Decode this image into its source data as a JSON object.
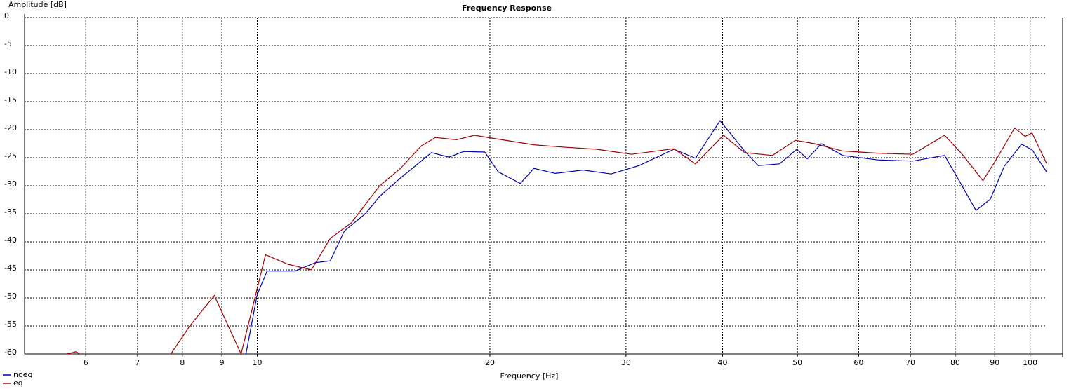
{
  "chart_data": {
    "type": "line",
    "title": "Frequency Response",
    "xlabel": "Frequency [Hz]",
    "ylabel": "Amplitude [dB]",
    "xscale": "log",
    "grid": true,
    "legend": "bottom-left",
    "xlim": [
      5,
      105
    ],
    "ylim": [
      -60,
      0
    ],
    "xticks": [
      6,
      7,
      8,
      9,
      10,
      20,
      30,
      40,
      50,
      60,
      70,
      80,
      90,
      100
    ],
    "yticks": [
      0,
      -5,
      -10,
      -15,
      -20,
      -25,
      -30,
      -35,
      -40,
      -45,
      -50,
      -55,
      -60
    ],
    "series": [
      {
        "name": "noeq",
        "color": "#0000b0",
        "x": [
          9.67,
          10,
          10.3,
          11.2,
          11.9,
          12.43,
          12.96,
          13.8,
          14.4,
          15.3,
          16.8,
          17.7,
          18.5,
          19.7,
          20.5,
          21.9,
          22.8,
          24.3,
          26.4,
          28.7,
          31.2,
          34.6,
          36.9,
          39.7,
          42.7,
          44.5,
          47.4,
          49.9,
          51.5,
          53.7,
          57.2,
          63.5,
          70.5,
          77.5,
          80.8,
          85.1,
          88.8,
          92.6,
          97.5,
          100.6,
          105
        ],
        "values": [
          -60,
          -49.4,
          -45.2,
          -45.2,
          -43.7,
          -43.4,
          -38.1,
          -35,
          -31.9,
          -28.7,
          -24.1,
          -24.9,
          -23.9,
          -24,
          -27.5,
          -29.6,
          -26.9,
          -27.8,
          -27.2,
          -27.9,
          -26.4,
          -23.5,
          -25.1,
          -18.4,
          -23.8,
          -26.4,
          -26.1,
          -23.5,
          -25.2,
          -22.5,
          -24.6,
          -25.4,
          -25.6,
          -24.6,
          -28.9,
          -34.4,
          -32.4,
          -26.5,
          -22.6,
          -23.6,
          -27.5
        ]
      },
      {
        "name": "eq",
        "color": "#a00000",
        "x": [
          5.67,
          5.83,
          5.89,
          7.0,
          7.73,
          8.18,
          8.8,
          9.53,
          10.25,
          10.96,
          11.75,
          12.43,
          13.24,
          14.4,
          15.3,
          16.3,
          17.0,
          18.1,
          19.1,
          20.1,
          22.8,
          24.8,
          27.5,
          30.5,
          34.6,
          36.9,
          40.1,
          42.7,
          46.4,
          49.7,
          52.6,
          57.2,
          63.5,
          70.5,
          77.5,
          81.7,
          86.9,
          90.7,
          95.5,
          98.5,
          100.6,
          105
        ],
        "values": [
          -60,
          -59.6,
          -60,
          null,
          -60,
          -55,
          -49.6,
          -60,
          -42.3,
          -44,
          -45,
          -39.4,
          -36.6,
          -30,
          -27,
          -22.9,
          -21.4,
          -21.8,
          -21,
          -21.5,
          -22.7,
          -23.1,
          -23.5,
          -24.4,
          -23.4,
          -26.1,
          -21,
          -24.1,
          -24.6,
          -21.9,
          -22.5,
          -23.8,
          -24.2,
          -24.4,
          -21,
          -24.4,
          -29.1,
          -25,
          -19.7,
          -21.2,
          -20.6,
          -26
        ]
      }
    ]
  }
}
